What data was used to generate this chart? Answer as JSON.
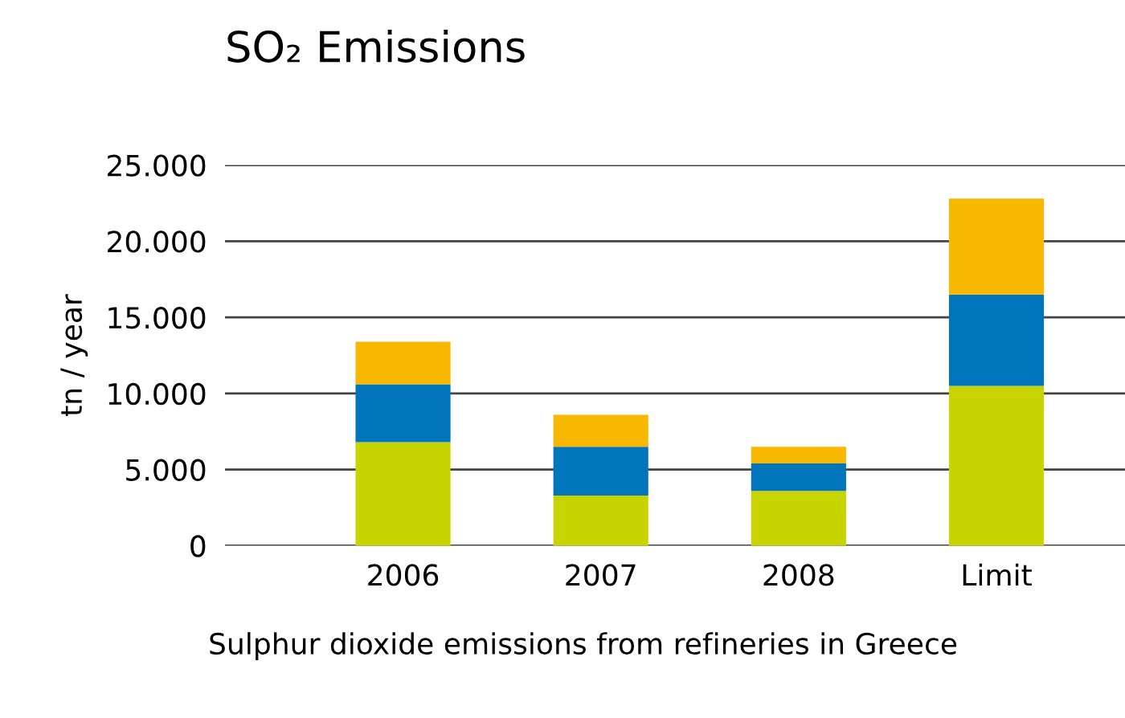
{
  "chart_data": {
    "type": "bar",
    "stacked": true,
    "title": "SO₂ Emissions",
    "ylabel": "tn / year",
    "categories": [
      "2006",
      "2007",
      "2008",
      "Limit"
    ],
    "series": [
      {
        "color": "#c8d400",
        "values": [
          6800,
          3300,
          3600,
          10500
        ]
      },
      {
        "color": "#0075bc",
        "values": [
          3800,
          3200,
          1800,
          6000
        ]
      },
      {
        "color": "#f9b800",
        "values": [
          2800,
          2100,
          1100,
          6300
        ]
      }
    ],
    "ylim": [
      0,
      25000
    ],
    "yticks": [
      {
        "value": 0,
        "label": "0"
      },
      {
        "value": 5000,
        "label": "5.000"
      },
      {
        "value": 10000,
        "label": "10.000"
      },
      {
        "value": 15000,
        "label": "15.000"
      },
      {
        "value": 20000,
        "label": "20.000"
      },
      {
        "value": 25000,
        "label": "25.000"
      }
    ],
    "grid": "y",
    "annotations": [
      "Sulphur dioxide emissions from refineries in Greece"
    ]
  }
}
